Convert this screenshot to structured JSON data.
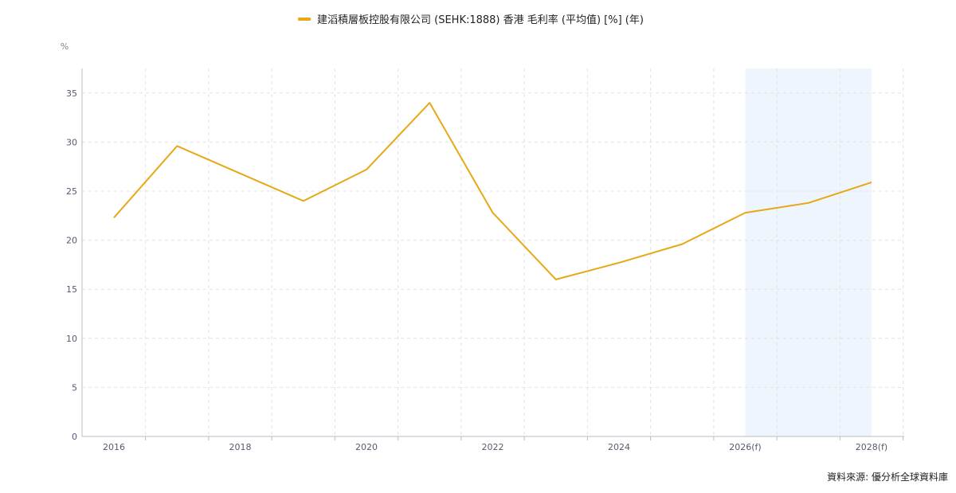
{
  "chart_data": {
    "type": "line",
    "legend": {
      "label": "建滔積層板控股有限公司 (SEHK:1888) 香港 毛利率 (平均值) [%] (年)",
      "position": "top-center"
    },
    "unit_label": "%",
    "x_tick_labels": [
      "2016",
      "2018",
      "2020",
      "2022",
      "2024",
      "2026(f)",
      "2028(f)"
    ],
    "years": [
      2016,
      2017,
      2018,
      2019,
      2020,
      2021,
      2022,
      2023,
      2024,
      2025,
      2026,
      2027,
      2028
    ],
    "series": [
      {
        "name": "建滔積層板控股有限公司 (SEHK:1888) 香港 毛利率 (平均值) [%] (年)",
        "values": [
          22.3,
          29.6,
          26.8,
          24.0,
          27.2,
          34.0,
          22.8,
          16.0,
          17.7,
          19.6,
          22.8,
          23.8,
          25.9
        ]
      }
    ],
    "forecast_range": [
      "2026(f)",
      "2028(f)"
    ],
    "ylim": [
      0,
      37.5
    ],
    "y_ticks": [
      0,
      5,
      10,
      15,
      20,
      25,
      30,
      35
    ],
    "grid": true,
    "colors": {
      "line": "#e6a817",
      "forecast_band": "#eef5fc",
      "grid": "#e3e3e3",
      "axis": "#b8bcc6"
    }
  },
  "footer": {
    "source": "資料來源: 優分析全球資料庫"
  }
}
